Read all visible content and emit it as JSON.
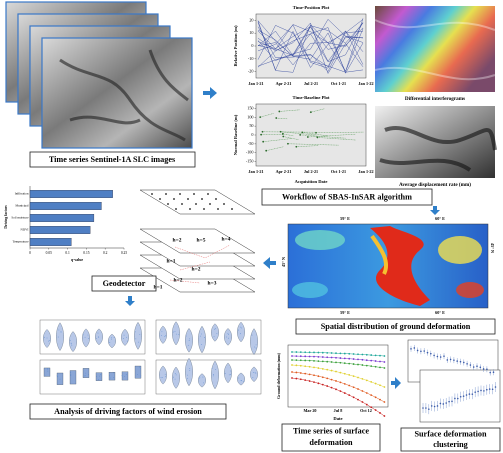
{
  "slc": {
    "label": "Time series Sentinel-1A SLC images"
  },
  "time_position": {
    "title": "Time-Position Plot",
    "ylabel": "Relative Position (m)",
    "ylim": [
      -25,
      25
    ],
    "yticks": [
      20,
      10,
      0,
      -10,
      -20
    ],
    "xticks": [
      "Jan 1-21",
      "Apr 2-21",
      "Jul 2-21",
      "Oct 1-21",
      "Jan 1-22"
    ]
  },
  "time_baseline": {
    "title": "Time-Baseline Plot",
    "ylabel": "Normal Baseline (m)",
    "xlabel": "Acquisition Date",
    "ylim": [
      -175,
      175
    ],
    "yticks": [
      150,
      100,
      50,
      0,
      -50,
      -100,
      -150
    ],
    "xticks": [
      "Jan 1-21",
      "Apr 2-21",
      "Jul 2-21",
      "Oct 1-21",
      "Jan 1-22"
    ]
  },
  "interferogram": {
    "label": "Differential interferograms"
  },
  "displacement": {
    "label": "Average displacement rate (mm)"
  },
  "sbas": {
    "label": "Workflow of SBAS-InSAR algorithm"
  },
  "map": {
    "labels": [
      "59° E",
      "60° E",
      "59° E",
      "60° E",
      "45° N",
      "45° N"
    ]
  },
  "spatial": {
    "label": "Spatial distribution of ground deformation"
  },
  "layers": {
    "labels": [
      "h=2",
      "h=5",
      "h=4",
      "h=1",
      "h=2",
      "h=2",
      "h=3",
      "h=1"
    ]
  },
  "geodetector": {
    "label": "Geodetector",
    "xlabel": "q-value",
    "ylabel": "Driving factors",
    "categories": [
      "Infiltration",
      "Municipal",
      "Soil moisture",
      "NDVI",
      "Temperature"
    ],
    "values": [
      0.22,
      0.19,
      0.17,
      0.16,
      0.11
    ],
    "color": "#4f7fc4",
    "xlim": [
      0,
      0.25
    ],
    "xticks": [
      0,
      0.05,
      0.1,
      0.15,
      0.2,
      0.25
    ]
  },
  "analysis": {
    "label": "Analysis of driving factors of wind erosion"
  },
  "timeseries": {
    "ylabel": "Ground deformation (mm)",
    "xlabel": "Date",
    "xticks": [
      "Mar 20",
      "Jul 8",
      "Oct 12"
    ],
    "label": [
      "Time series of surface",
      "deformation"
    ]
  },
  "clustering": {
    "label": [
      "Surface deformation",
      "clustering"
    ]
  }
}
